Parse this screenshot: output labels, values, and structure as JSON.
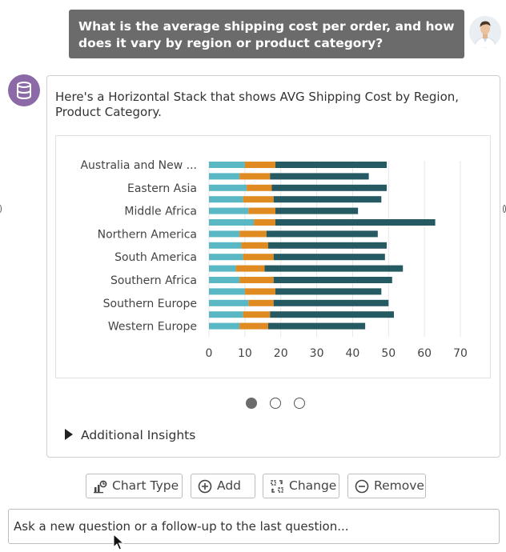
{
  "user_message": "What is the average shipping cost per order, and how does it vary by region or product category?",
  "assistant": {
    "message": "Here's a Horizontal Stack that shows AVG Shipping Cost by Region, Product Category."
  },
  "colors": {
    "bubble": "#6b6b6b",
    "bot_avatar": "#8c6aa8",
    "series_1": "#59b8c4",
    "series_2": "#e08a22",
    "series_3": "#255a62"
  },
  "chart_data": {
    "type": "bar",
    "orientation": "horizontal",
    "stacked": true,
    "categories": [
      "Australia and New ...",
      "Eastern Asia",
      "Middle Africa",
      "Northern America",
      "South America",
      "Southern Africa",
      "Southern Europe",
      "Western Europe"
    ],
    "xlim": [
      0,
      70
    ],
    "xticks": [
      "0",
      "10",
      "20",
      "30",
      "40",
      "50",
      "60",
      "70"
    ],
    "grid": true,
    "bars": [
      {
        "category": "Australia and New ...",
        "values": [
          10,
          8.5,
          31
        ]
      },
      {
        "category": "",
        "values": [
          8.5,
          8.5,
          27.5
        ]
      },
      {
        "category": "Eastern Asia",
        "values": [
          10.5,
          7,
          32
        ]
      },
      {
        "category": "",
        "values": [
          9.5,
          8.5,
          30
        ]
      },
      {
        "category": "Middle Africa",
        "values": [
          11,
          7.5,
          23
        ]
      },
      {
        "category": "",
        "values": [
          12.5,
          6,
          44.5
        ]
      },
      {
        "category": "Northern America",
        "values": [
          8.5,
          7.5,
          31
        ]
      },
      {
        "category": "",
        "values": [
          9,
          7.5,
          33
        ]
      },
      {
        "category": "South America",
        "values": [
          9.5,
          8.5,
          31
        ]
      },
      {
        "category": "",
        "values": [
          7.5,
          8,
          38.5
        ]
      },
      {
        "category": "Southern Africa",
        "values": [
          8.5,
          9.5,
          33
        ]
      },
      {
        "category": "",
        "values": [
          10,
          8.5,
          29.5
        ]
      },
      {
        "category": "Southern Europe",
        "values": [
          11,
          7,
          32
        ]
      },
      {
        "category": "",
        "values": [
          9.5,
          7.5,
          34.5
        ]
      },
      {
        "category": "Western Europe",
        "values": [
          8.5,
          8,
          27
        ]
      }
    ]
  },
  "pager": {
    "count": 3,
    "active": 0
  },
  "insights_label": "Additional Insights",
  "toolbar": {
    "chart_type": "Chart Type",
    "add": "Add",
    "change": "Change",
    "remove": "Remove"
  },
  "input": {
    "placeholder": "Ask a new question or a follow-up to the last question..."
  }
}
